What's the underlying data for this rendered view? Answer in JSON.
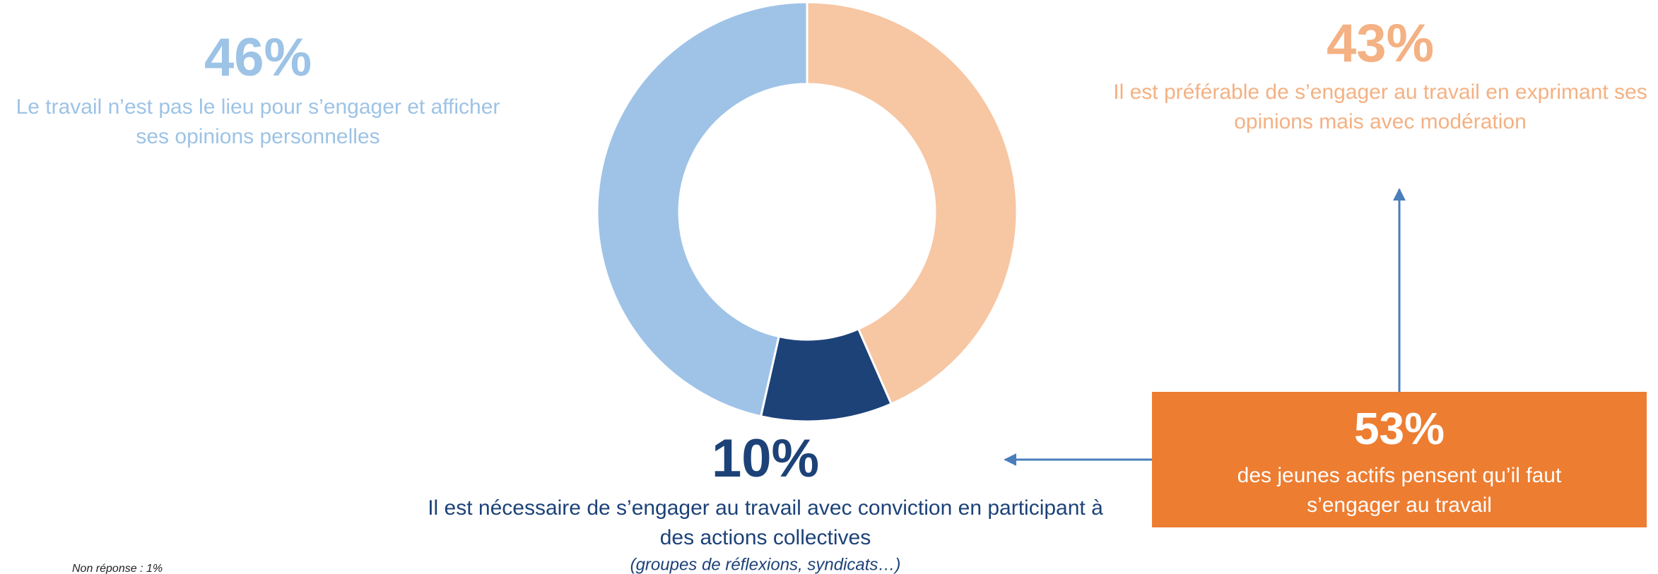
{
  "chart_data": {
    "type": "pie",
    "donut": true,
    "categories": [
      [
        "Il est préférable de s’engager au travail en exprimant ses",
        "opinions mais avec modération"
      ],
      [
        "Il est nécessaire de s’engager au travail avec conviction en participant à",
        "des actions collectives"
      ],
      [
        "Le travail n’est pas le lieu pour s’engager et afficher",
        "ses opinions personnelles"
      ]
    ],
    "values": [
      43,
      10,
      46
    ],
    "value_labels": [
      "43%",
      "10%",
      "46%"
    ],
    "colors": [
      "#f7c6a3",
      "#1c4278",
      "#9fc3e7"
    ],
    "label_colors": [
      "#f4b183",
      "#1c4278",
      "#9dc3e6"
    ],
    "sub_note": "(groupes de réflexions, syndicats…)",
    "callout": {
      "headline": "53%",
      "text": [
        "des jeunes actifs pensent qu’il faut",
        "s’engager au travail"
      ],
      "color": "#ed7d31"
    },
    "footnote": "Non réponse : 1%"
  }
}
